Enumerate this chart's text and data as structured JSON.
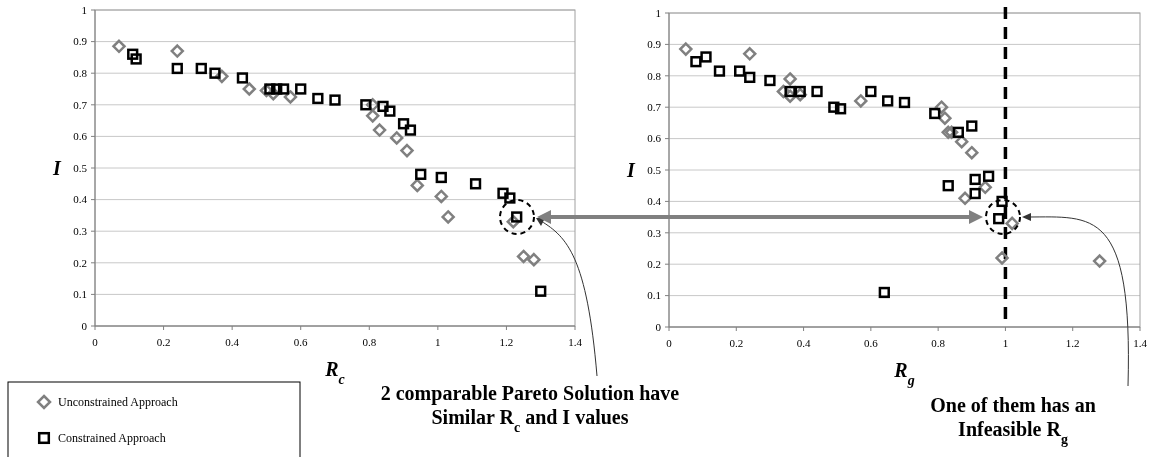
{
  "chart_data": [
    {
      "type": "scatter",
      "xlabel": "R$_{c}$",
      "ylabel": "I",
      "xlim": [
        0,
        1.4
      ],
      "xticks": [
        0,
        0.2,
        0.4,
        0.6,
        0.8,
        1,
        1.2,
        1.4
      ],
      "ylim": [
        0,
        1
      ],
      "yticks": [
        0,
        0.1,
        0.2,
        0.3,
        0.4,
        0.5,
        0.6,
        0.7,
        0.8,
        0.9,
        1
      ],
      "grid": "y",
      "legend": "bottom left",
      "annotations": [
        "2 comparable Pareto Solution have Similar R$_{c}$ and I values"
      ],
      "series": [
        {
          "name": "Unconstrained Approach",
          "color": "#808080",
          "marker": "diamond",
          "x": [
            0.07,
            0.24,
            0.37,
            0.45,
            0.5,
            0.52,
            0.57,
            0.81,
            0.81,
            0.83,
            0.88,
            0.91,
            0.94,
            1.01,
            1.03,
            1.22,
            1.25,
            1.28
          ],
          "values": [
            0.885,
            0.87,
            0.79,
            0.75,
            0.745,
            0.735,
            0.725,
            0.7,
            0.665,
            0.62,
            0.595,
            0.555,
            0.445,
            0.41,
            0.345,
            0.33,
            0.22,
            0.21
          ]
        },
        {
          "name": "Constrained Approach",
          "color": "#000000",
          "marker": "square",
          "x": [
            0.11,
            0.12,
            0.24,
            0.31,
            0.35,
            0.43,
            0.51,
            0.53,
            0.55,
            0.6,
            0.65,
            0.7,
            0.79,
            0.84,
            0.86,
            0.9,
            0.92,
            0.95,
            1.01,
            1.11,
            1.19,
            1.21,
            1.23,
            1.3
          ],
          "values": [
            0.86,
            0.845,
            0.815,
            0.815,
            0.8,
            0.785,
            0.75,
            0.75,
            0.75,
            0.75,
            0.72,
            0.715,
            0.7,
            0.695,
            0.68,
            0.64,
            0.62,
            0.48,
            0.47,
            0.45,
            0.42,
            0.405,
            0.345,
            0.11
          ]
        }
      ]
    },
    {
      "type": "scatter",
      "xlabel": "R$_{g}$",
      "ylabel": "I",
      "xlim": [
        0,
        1.4
      ],
      "xticks": [
        0,
        0.2,
        0.4,
        0.6,
        0.8,
        1,
        1.2,
        1.4
      ],
      "ylim": [
        0,
        1
      ],
      "yticks": [
        0,
        0.1,
        0.2,
        0.3,
        0.4,
        0.5,
        0.6,
        0.7,
        0.8,
        0.9,
        1
      ],
      "grid": "y",
      "ref_lines": [
        {
          "axis": "x",
          "value": 1,
          "color": "#000000",
          "line_style": "dashed"
        }
      ],
      "annotations": [
        "One of them has an Infeasible R$_{g}$"
      ],
      "series": [
        {
          "color": "#808080",
          "marker": "diamond",
          "x": [
            0.05,
            0.24,
            0.34,
            0.36,
            0.36,
            0.39,
            0.57,
            0.81,
            0.82,
            0.83,
            0.84,
            0.87,
            0.9,
            0.88,
            0.94,
            0.99,
            1.02,
            1.28
          ],
          "values": [
            0.885,
            0.87,
            0.75,
            0.79,
            0.735,
            0.74,
            0.72,
            0.7,
            0.665,
            0.62,
            0.62,
            0.59,
            0.555,
            0.41,
            0.445,
            0.22,
            0.33,
            0.21
          ]
        },
        {
          "color": "#000000",
          "marker": "square",
          "x": [
            0.08,
            0.11,
            0.15,
            0.21,
            0.24,
            0.3,
            0.36,
            0.39,
            0.44,
            0.49,
            0.51,
            0.6,
            0.65,
            0.7,
            0.79,
            0.83,
            0.86,
            0.9,
            0.91,
            0.91,
            0.95,
            0.98,
            0.99,
            0.64
          ],
          "values": [
            0.845,
            0.86,
            0.815,
            0.815,
            0.795,
            0.785,
            0.75,
            0.75,
            0.75,
            0.7,
            0.695,
            0.75,
            0.72,
            0.715,
            0.68,
            0.45,
            0.62,
            0.64,
            0.47,
            0.425,
            0.48,
            0.345,
            0.4,
            0.11
          ]
        }
      ]
    }
  ]
}
